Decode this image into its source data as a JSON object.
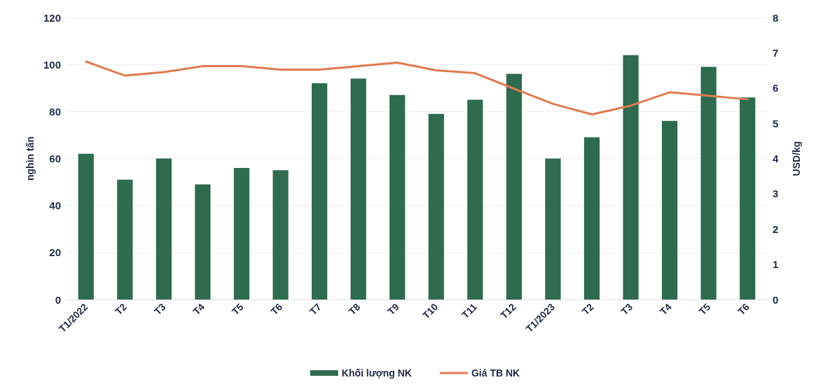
{
  "chart_data": {
    "type": "bar",
    "categories": [
      "T1/2022",
      "T2",
      "T3",
      "T4",
      "T5",
      "T6",
      "T7",
      "T8",
      "T9",
      "T10",
      "T11",
      "T12",
      "T1/2023",
      "T2",
      "T3",
      "T4",
      "T5",
      "T6"
    ],
    "series": [
      {
        "name": "Khối lượng NK",
        "color": "#2e6b4f",
        "values": [
          62,
          51,
          60,
          49,
          56,
          55,
          92,
          94,
          87,
          79,
          85,
          96,
          60,
          69,
          104,
          76,
          99,
          86
        ]
      },
      {
        "name": "Giá TB NK",
        "type": "line",
        "axis": "y2",
        "color": "#e07a50",
        "values": [
          6.75,
          6.35,
          6.45,
          6.62,
          6.62,
          6.52,
          6.52,
          6.62,
          6.72,
          6.5,
          6.42,
          5.98,
          5.55,
          5.25,
          5.5,
          5.88,
          5.78,
          5.68
        ]
      }
    ],
    "ylabel": "nghìn tấn",
    "y2label": "USD/kg",
    "ylim": [
      0,
      120
    ],
    "yticks": [
      0,
      20,
      40,
      60,
      80,
      100,
      120
    ],
    "y2lim": [
      0,
      8
    ],
    "y2ticks": [
      0,
      1,
      2,
      3,
      4,
      5,
      6,
      7,
      8
    ],
    "grid": "y",
    "legend": "bottom",
    "marker": "none",
    "line_style": "solid"
  }
}
